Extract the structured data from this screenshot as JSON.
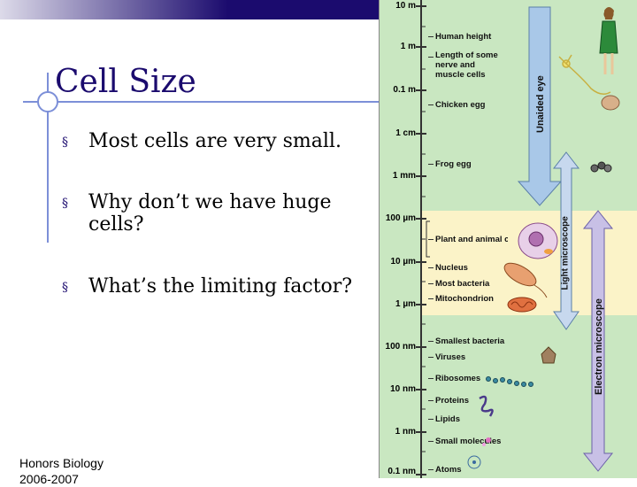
{
  "slide": {
    "title": "Cell Size",
    "bullets": [
      "Most cells are very small.",
      "Why don’t we have huge cells?",
      "What’s the limiting factor?"
    ],
    "bullet_mark": "§",
    "footer_line1": "Honors Biology",
    "footer_line2": "2006-2007"
  },
  "figure": {
    "scale_ticks": [
      "10 m",
      "1 m",
      "0.1 m",
      "1 cm",
      "1 mm",
      "100 µm",
      "10 µm",
      "1 µm",
      "100 nm",
      "10 nm",
      "1 nm",
      "0.1 nm"
    ],
    "objects": [
      "Human height",
      "Length of some nerve and muscle cells",
      "Chicken egg",
      "Frog egg",
      "Plant and animal cells",
      "Nucleus",
      "Most bacteria",
      "Mitochondrion",
      "Smallest bacteria",
      "Viruses",
      "Ribosomes",
      "Proteins",
      "Lipids",
      "Small molecules",
      "Atoms"
    ],
    "ranges": {
      "unaided_eye": "Unaided eye",
      "light_microscope": "Light microscope",
      "electron_microscope": "Electron microscope"
    },
    "colors": {
      "background": "#c9e7c1",
      "light_band": "#fbf3c8",
      "eye_arrow": "#a9c8e8",
      "light_arrow": "#c7d8ee",
      "em_arrow": "#c8c0e6",
      "title": "#1b0b6e",
      "accent": "#7c8fd8"
    }
  }
}
